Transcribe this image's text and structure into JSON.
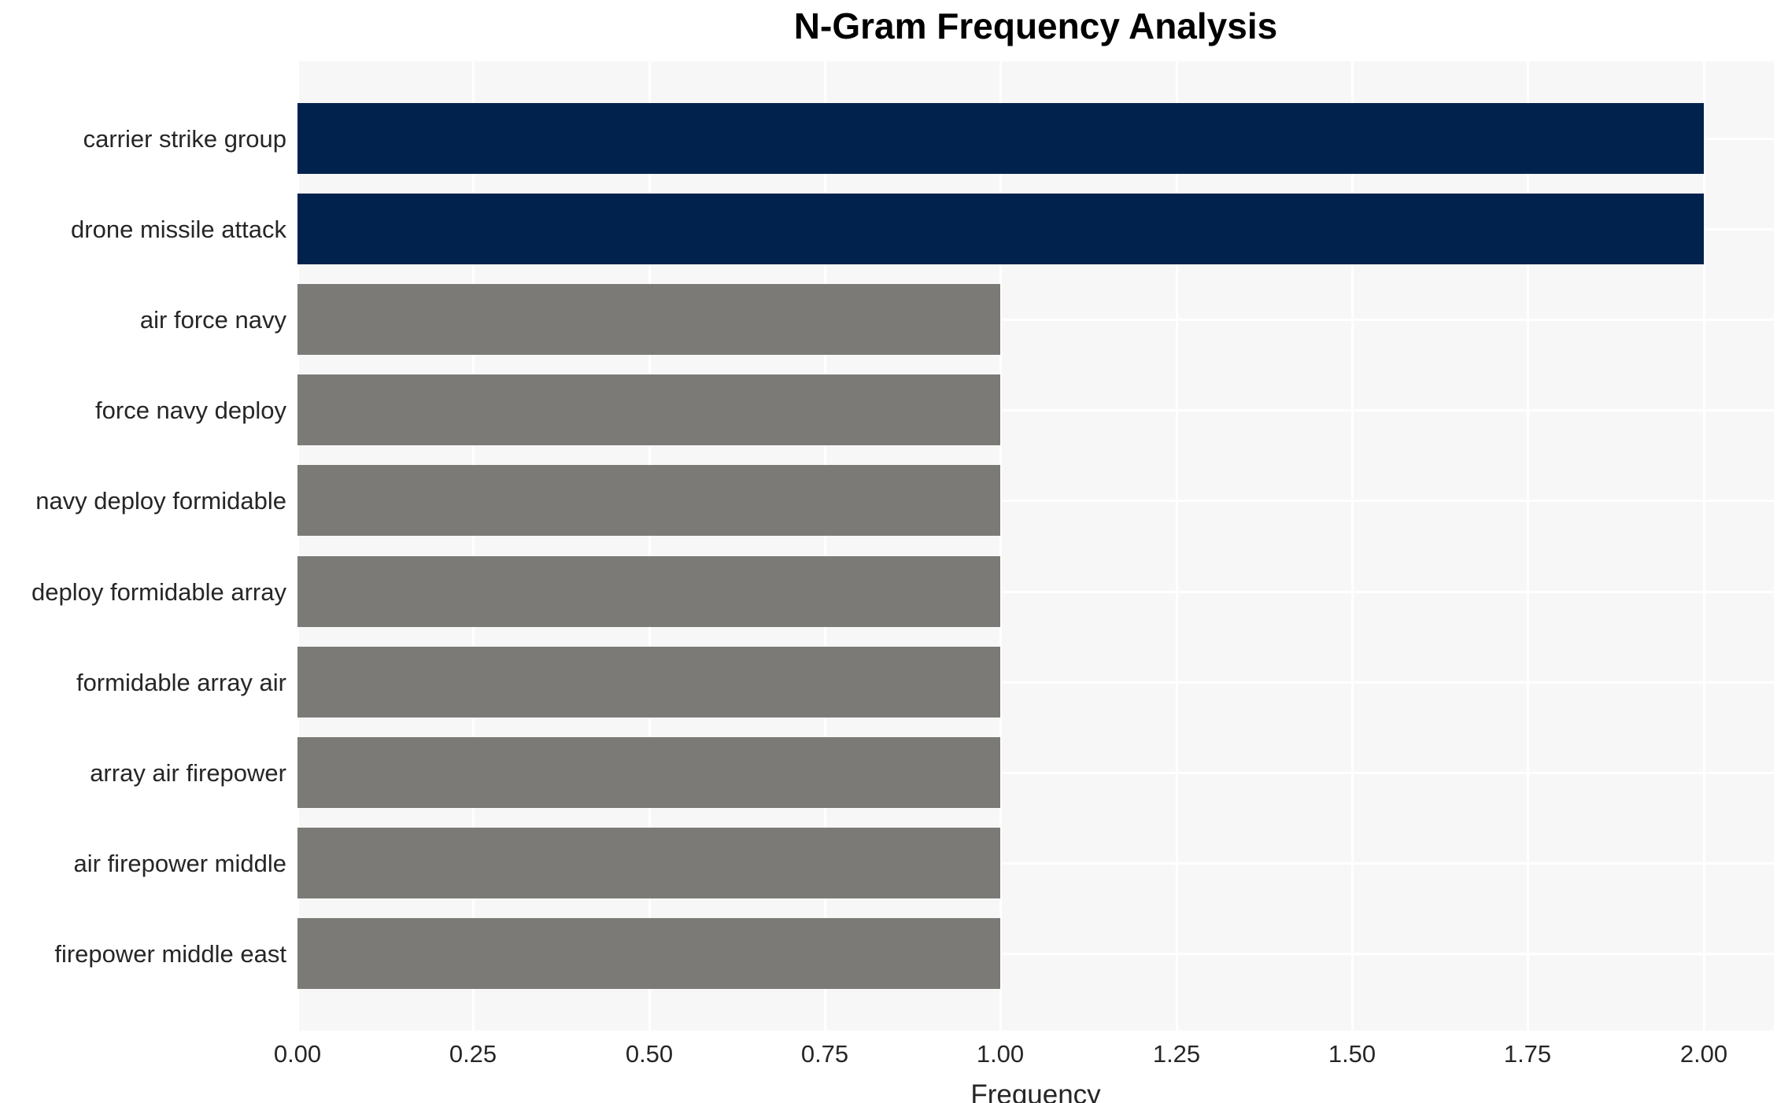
{
  "chart_data": {
    "type": "bar",
    "orientation": "horizontal",
    "title": "N-Gram Frequency Analysis",
    "xlabel": "Frequency",
    "ylabel": "",
    "categories": [
      "carrier strike group",
      "drone missile attack",
      "air force navy",
      "force navy deploy",
      "navy deploy formidable",
      "deploy formidable array",
      "formidable array air",
      "array air firepower",
      "air firepower middle",
      "firepower middle east"
    ],
    "values": [
      2,
      2,
      1,
      1,
      1,
      1,
      1,
      1,
      1,
      1
    ],
    "bar_colors": [
      "#01224d",
      "#01224d",
      "#7b7a76",
      "#7b7a76",
      "#7b7a76",
      "#7b7a76",
      "#7b7a76",
      "#7b7a76",
      "#7b7a76",
      "#7b7a76"
    ],
    "xlim": [
      0,
      2.1
    ],
    "xticks": [
      0,
      0.25,
      0.5,
      0.75,
      1,
      1.25,
      1.5,
      1.75,
      2
    ],
    "xtick_labels": [
      "0.00",
      "0.25",
      "0.50",
      "0.75",
      "1.00",
      "1.25",
      "1.50",
      "1.75",
      "2.00"
    ],
    "grid": true,
    "legend": "none",
    "colors": {
      "highlight_bar": "#01224d",
      "default_bar": "#7b7a76",
      "plot_background": "#f7f7f7",
      "grid_line": "#ffffff",
      "tick_text": "#262626",
      "title_text": "#000000"
    }
  }
}
